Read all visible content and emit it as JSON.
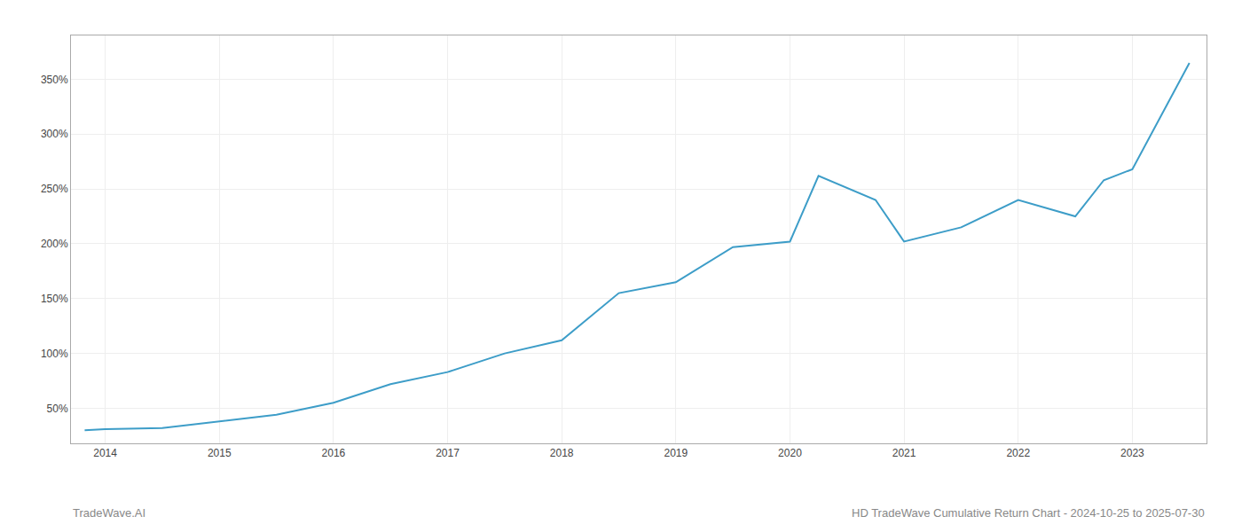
{
  "chart_data": {
    "type": "line",
    "x": [
      2013.82,
      2014.0,
      2014.5,
      2015.0,
      2015.5,
      2016.0,
      2016.5,
      2017.0,
      2017.5,
      2018.0,
      2018.5,
      2019.0,
      2019.5,
      2020.0,
      2020.25,
      2020.75,
      2021.0,
      2021.5,
      2022.0,
      2022.5,
      2022.75,
      2023.0,
      2023.5
    ],
    "values": [
      30,
      31,
      32,
      38,
      44,
      55,
      72,
      83,
      100,
      112,
      155,
      165,
      197,
      202,
      262,
      240,
      202,
      215,
      240,
      225,
      258,
      268,
      365
    ],
    "color": "#3d9dc8",
    "xlim": [
      2013.7,
      2023.65
    ],
    "xticks": [
      2014,
      2015,
      2016,
      2017,
      2018,
      2019,
      2020,
      2021,
      2022,
      2023
    ],
    "ylim": [
      18,
      390
    ],
    "yticks": [
      {
        "value": 50,
        "label": "50%"
      },
      {
        "value": 100,
        "label": "100%"
      },
      {
        "value": 150,
        "label": "150%"
      },
      {
        "value": 200,
        "label": "200%"
      },
      {
        "value": 250,
        "label": "250%"
      },
      {
        "value": 300,
        "label": "300%"
      },
      {
        "value": 350,
        "label": "350%"
      }
    ],
    "grid": true,
    "annotations": [
      "TradeWave.AI",
      "HD TradeWave Cumulative Return Chart - 2024-10-25 to 2025-07-30"
    ]
  }
}
